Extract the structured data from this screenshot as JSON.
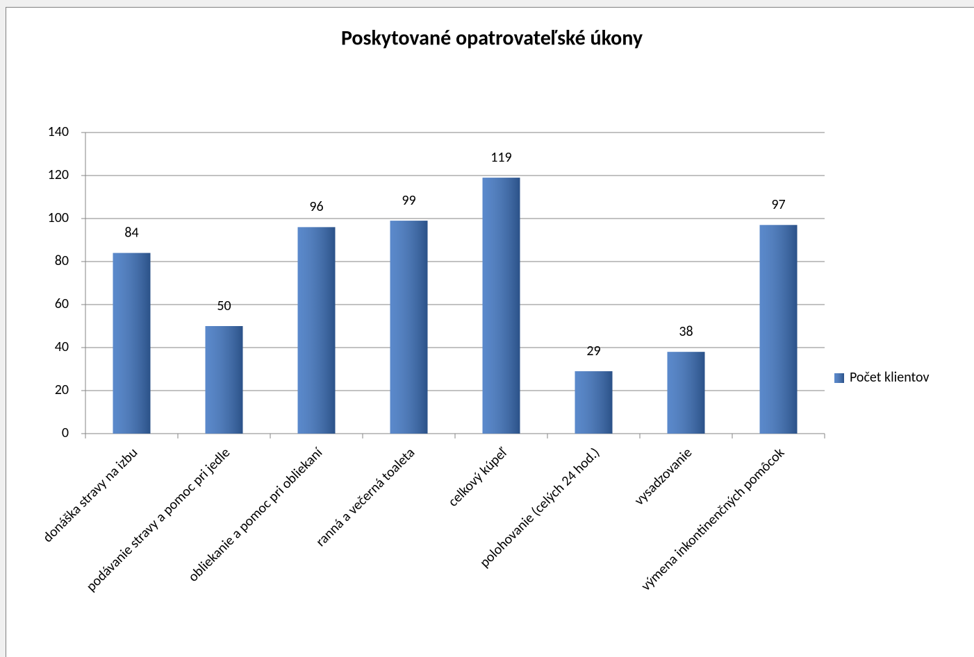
{
  "chart_data": {
    "type": "bar",
    "title": "Poskytované opatrovateľské úkony",
    "categories": [
      "donáška stravy na izbu",
      "podávanie stravy a pomoc pri jedle",
      "obliekanie a pomoc pri obliekaní",
      "ranná a večerná toaleta",
      "celkový kúpeľ",
      "polohovanie (celých 24 hod.)",
      "vysadzovanie",
      "výmena inkontinenčných pomôcok"
    ],
    "series": [
      {
        "name": "Počet klientov",
        "color": "#3d74c2",
        "values": [
          84,
          50,
          96,
          99,
          119,
          29,
          38,
          97
        ]
      }
    ],
    "ylim": [
      0,
      140
    ],
    "yticks": [
      0,
      20,
      40,
      60,
      80,
      100,
      120,
      140
    ],
    "grid": true,
    "legend": "right"
  }
}
